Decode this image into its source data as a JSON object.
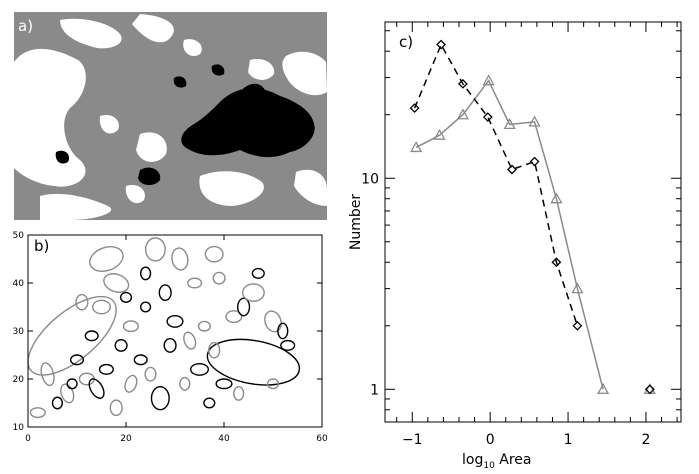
{
  "panels": {
    "a": {
      "label": "a)"
    },
    "b": {
      "label": "b)"
    },
    "c": {
      "label": "c)"
    }
  },
  "colors": {
    "gray": "#8a8a8a",
    "black": "#000000",
    "white": "#ffffff",
    "seriesA": "#8a8a8a",
    "seriesB": "#000000"
  },
  "chart_data": [
    {
      "panel": "b",
      "type": "scatter",
      "title": "",
      "xlabel": "",
      "ylabel": "",
      "xlim": [
        0,
        60
      ],
      "ylim": [
        10,
        50
      ],
      "xticks": [
        0,
        20,
        40,
        60
      ],
      "yticks": [
        10,
        20,
        30,
        40,
        50
      ],
      "mark": "ellipse",
      "ellipses": [
        {
          "x": 9,
          "y": 29,
          "rx": 11,
          "ry": 5,
          "angle": 40,
          "tone": "gray"
        },
        {
          "x": 46,
          "y": 23.5,
          "rx": 9.5,
          "ry": 4.5,
          "angle": -10,
          "tone": "black"
        },
        {
          "x": 16,
          "y": 45,
          "rx": 3.5,
          "ry": 2.4,
          "angle": 20,
          "tone": "gray"
        },
        {
          "x": 18,
          "y": 40,
          "rx": 2.6,
          "ry": 1.8,
          "angle": -20,
          "tone": "gray"
        },
        {
          "x": 26,
          "y": 47,
          "rx": 2,
          "ry": 2.4,
          "angle": 0,
          "tone": "gray"
        },
        {
          "x": 31,
          "y": 45,
          "rx": 1.6,
          "ry": 2.3,
          "angle": 10,
          "tone": "gray"
        },
        {
          "x": 38,
          "y": 46,
          "rx": 1.8,
          "ry": 1.6,
          "angle": 0,
          "tone": "gray"
        },
        {
          "x": 4,
          "y": 21,
          "rx": 1.2,
          "ry": 2.4,
          "angle": 15,
          "tone": "gray"
        },
        {
          "x": 2,
          "y": 13,
          "rx": 1.5,
          "ry": 1,
          "angle": 0,
          "tone": "gray"
        },
        {
          "x": 8,
          "y": 17,
          "rx": 1.2,
          "ry": 2,
          "angle": 20,
          "tone": "gray"
        },
        {
          "x": 10,
          "y": 24,
          "rx": 1.3,
          "ry": 1,
          "angle": 0,
          "tone": "black"
        },
        {
          "x": 12,
          "y": 20,
          "rx": 1.5,
          "ry": 1.2,
          "angle": 0,
          "tone": "gray"
        },
        {
          "x": 14,
          "y": 18,
          "rx": 1.2,
          "ry": 2.2,
          "angle": 30,
          "tone": "black"
        },
        {
          "x": 16,
          "y": 22,
          "rx": 1.4,
          "ry": 1,
          "angle": 0,
          "tone": "black"
        },
        {
          "x": 18,
          "y": 14,
          "rx": 1.2,
          "ry": 1.6,
          "angle": 0,
          "tone": "gray"
        },
        {
          "x": 21,
          "y": 19,
          "rx": 1.1,
          "ry": 1.8,
          "angle": -20,
          "tone": "gray"
        },
        {
          "x": 23,
          "y": 24,
          "rx": 1.3,
          "ry": 1,
          "angle": 0,
          "tone": "black"
        },
        {
          "x": 27,
          "y": 16,
          "rx": 1.8,
          "ry": 2.4,
          "angle": 0,
          "tone": "black"
        },
        {
          "x": 25,
          "y": 21,
          "rx": 1.1,
          "ry": 1.4,
          "angle": 0,
          "tone": "gray"
        },
        {
          "x": 29,
          "y": 27,
          "rx": 1.2,
          "ry": 1.4,
          "angle": 0,
          "tone": "black"
        },
        {
          "x": 30,
          "y": 32,
          "rx": 1.6,
          "ry": 1.2,
          "angle": 0,
          "tone": "black"
        },
        {
          "x": 33,
          "y": 28,
          "rx": 1.1,
          "ry": 1.8,
          "angle": 20,
          "tone": "gray"
        },
        {
          "x": 35,
          "y": 22,
          "rx": 1.8,
          "ry": 1.2,
          "angle": 0,
          "tone": "black"
        },
        {
          "x": 36,
          "y": 31,
          "rx": 1.2,
          "ry": 1,
          "angle": 0,
          "tone": "gray"
        },
        {
          "x": 38,
          "y": 26,
          "rx": 1.1,
          "ry": 1.6,
          "angle": 0,
          "tone": "gray"
        },
        {
          "x": 40,
          "y": 19,
          "rx": 1.6,
          "ry": 1,
          "angle": 0,
          "tone": "black"
        },
        {
          "x": 42,
          "y": 33,
          "rx": 1.6,
          "ry": 1.2,
          "angle": 0,
          "tone": "gray"
        },
        {
          "x": 44,
          "y": 35,
          "rx": 1.2,
          "ry": 1.8,
          "angle": 0,
          "tone": "black"
        },
        {
          "x": 46,
          "y": 38,
          "rx": 2.2,
          "ry": 1.8,
          "angle": 0,
          "tone": "gray"
        },
        {
          "x": 50,
          "y": 32,
          "rx": 1.6,
          "ry": 2.2,
          "angle": 20,
          "tone": "gray"
        },
        {
          "x": 52,
          "y": 30,
          "rx": 1,
          "ry": 1.6,
          "angle": 0,
          "tone": "black"
        },
        {
          "x": 39,
          "y": 41,
          "rx": 1.2,
          "ry": 1.2,
          "angle": 0,
          "tone": "gray"
        },
        {
          "x": 34,
          "y": 40,
          "rx": 1.4,
          "ry": 1,
          "angle": 0,
          "tone": "gray"
        },
        {
          "x": 28,
          "y": 38,
          "rx": 1.2,
          "ry": 1.6,
          "angle": 0,
          "tone": "black"
        },
        {
          "x": 24,
          "y": 35,
          "rx": 1,
          "ry": 1,
          "angle": 0,
          "tone": "black"
        },
        {
          "x": 21,
          "y": 31,
          "rx": 1.5,
          "ry": 1.1,
          "angle": 0,
          "tone": "gray"
        },
        {
          "x": 19,
          "y": 27,
          "rx": 1.2,
          "ry": 1.2,
          "angle": 0,
          "tone": "black"
        },
        {
          "x": 15,
          "y": 35,
          "rx": 1.8,
          "ry": 1.4,
          "angle": 0,
          "tone": "gray"
        },
        {
          "x": 13,
          "y": 29,
          "rx": 1.3,
          "ry": 1,
          "angle": 0,
          "tone": "black"
        },
        {
          "x": 11,
          "y": 36,
          "rx": 1.2,
          "ry": 1.6,
          "angle": 0,
          "tone": "gray"
        },
        {
          "x": 32,
          "y": 19,
          "rx": 1,
          "ry": 1.3,
          "angle": 0,
          "tone": "gray"
        },
        {
          "x": 37,
          "y": 15,
          "rx": 1.1,
          "ry": 1,
          "angle": 0,
          "tone": "black"
        },
        {
          "x": 43,
          "y": 17,
          "rx": 1,
          "ry": 1.4,
          "angle": 0,
          "tone": "gray"
        },
        {
          "x": 47,
          "y": 42,
          "rx": 1.2,
          "ry": 1,
          "angle": 0,
          "tone": "black"
        },
        {
          "x": 53,
          "y": 27,
          "rx": 1.4,
          "ry": 1,
          "angle": 0,
          "tone": "black"
        },
        {
          "x": 50,
          "y": 19,
          "rx": 1.1,
          "ry": 1,
          "angle": 0,
          "tone": "gray"
        },
        {
          "x": 24,
          "y": 42,
          "rx": 1,
          "ry": 1.3,
          "angle": 0,
          "tone": "black"
        },
        {
          "x": 20,
          "y": 37,
          "rx": 1.1,
          "ry": 1,
          "angle": 0,
          "tone": "black"
        },
        {
          "x": 9,
          "y": 19,
          "rx": 1,
          "ry": 1,
          "angle": 0,
          "tone": "black"
        },
        {
          "x": 6,
          "y": 15,
          "rx": 1,
          "ry": 1.2,
          "angle": 0,
          "tone": "black"
        }
      ]
    },
    {
      "panel": "c",
      "type": "line",
      "title": "",
      "xlabel": "log",
      "xlabel_sub": "10",
      "xlabel_suffix": " Area",
      "ylabel": "Number",
      "yscale": "log",
      "xlim": [
        -1.35,
        2.45
      ],
      "ylim": [
        0.7,
        55
      ],
      "xticks": [
        -1,
        0,
        1,
        2
      ],
      "xtick_labels": [
        "−1",
        "0",
        "1",
        "2"
      ],
      "yticks": [
        1,
        10
      ],
      "ytick_labels": [
        "1",
        "10"
      ],
      "series": [
        {
          "marker": "triangle",
          "style": "solid",
          "color": "#8a8a8a",
          "x": [
            -0.95,
            -0.65,
            -0.35,
            -0.02,
            0.25,
            0.57,
            0.85,
            1.12,
            1.45,
            2.05
          ],
          "y": [
            14,
            16,
            20,
            29,
            18,
            18.5,
            8,
            3,
            1,
            1
          ],
          "connect": 9
        },
        {
          "marker": "diamond",
          "style": "dashed",
          "color": "#000000",
          "x": [
            -0.97,
            -0.63,
            -0.35,
            -0.03,
            0.28,
            0.57,
            0.85,
            1.12,
            2.05
          ],
          "y": [
            21.5,
            43,
            28,
            19.5,
            11,
            12,
            4,
            2,
            1
          ],
          "connect": 8
        }
      ]
    }
  ]
}
